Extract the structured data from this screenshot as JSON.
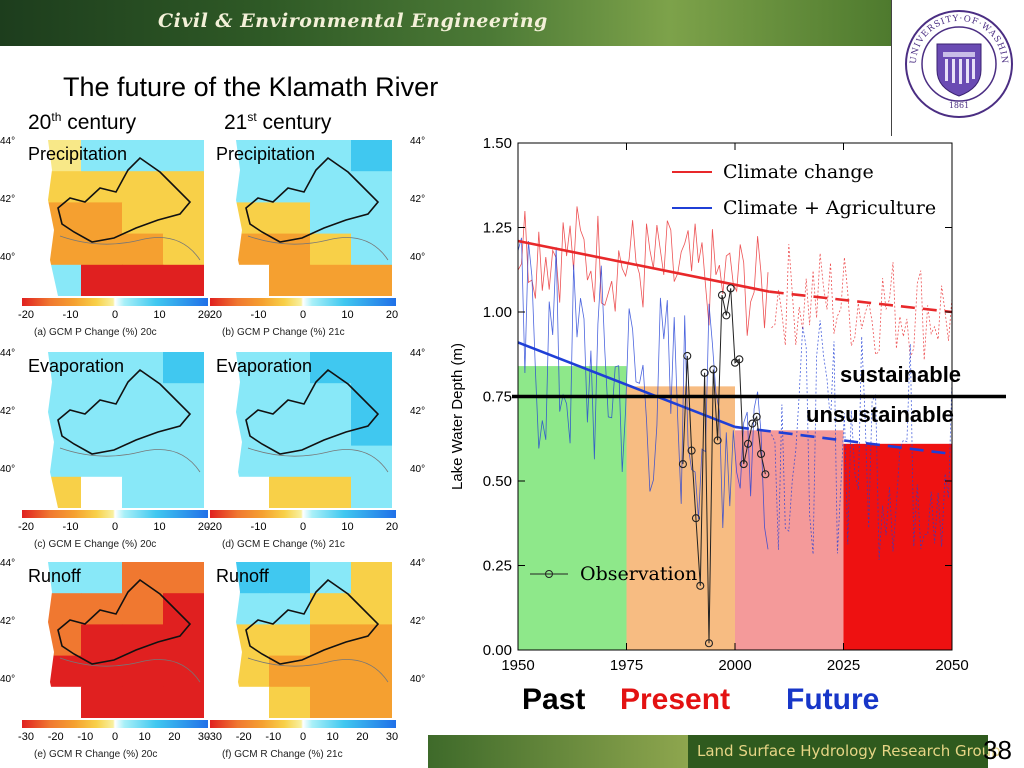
{
  "header": {
    "banner_text": "Civil & Environmental Engineering",
    "seal_text": "UNIVERSITY·OF·WASHINGTON",
    "seal_year": "1861"
  },
  "slide": {
    "title": "The future of the Klamath River",
    "col_left": {
      "num": "20",
      "sup": "th",
      "rest": " century"
    },
    "col_right": {
      "num": "21",
      "sup": "st",
      "rest": " century"
    }
  },
  "maps": {
    "rows": [
      {
        "label": "Precipitation",
        "caption_left": "(a) GCM P Change (%) 20c",
        "caption_right": "(b) GCM P Change (%) 21c",
        "ticks": [
          "-20",
          "-10",
          "0",
          "10",
          "20"
        ]
      },
      {
        "label": "Evaporation",
        "caption_left": "(c) GCM E Change (%) 20c",
        "caption_right": "(d) GCM E Change (%) 21c",
        "ticks": [
          "-20",
          "-10",
          "0",
          "10",
          "20"
        ]
      },
      {
        "label": "Runoff",
        "caption_left": "(e) GCM R Change (%) 20c",
        "caption_right": "(f) GCM R Change (%) 21c",
        "ticks": [
          "-30",
          "-20",
          "-10",
          "0",
          "10",
          "20",
          "30"
        ]
      }
    ],
    "lat_labels": [
      "44°",
      "42°",
      "40°"
    ]
  },
  "chart_data": {
    "type": "line",
    "ylabel": "Lake Water Depth (m)",
    "xlim": [
      1950,
      2050
    ],
    "ylim": [
      0.0,
      1.5
    ],
    "xticks": [
      "1950",
      "1975",
      "2000",
      "2025",
      "2050"
    ],
    "yticks": [
      "0.00",
      "0.25",
      "0.50",
      "0.75",
      "1.00",
      "1.25",
      "1.50"
    ],
    "legend": [
      "Climate change",
      "Climate + Agriculture",
      "Observation"
    ],
    "colors": {
      "climate": "#e8282a",
      "agri": "#1f3fd6",
      "obs": "#222222",
      "threshold": "#000000"
    },
    "threshold": 0.75,
    "zones": [
      {
        "from": 1950,
        "to": 1975,
        "height": 0.84,
        "color": "#8ee88a"
      },
      {
        "from": 1975,
        "to": 2000,
        "height": 0.78,
        "color": "#f7bc82"
      },
      {
        "from": 2000,
        "to": 2025,
        "height": 0.65,
        "color": "#f49a9a"
      },
      {
        "from": 2025,
        "to": 2050,
        "height": 0.61,
        "color": "#ee1111"
      }
    ],
    "climate_trend_solid": [
      [
        1950,
        1.21
      ],
      [
        2008,
        1.06
      ]
    ],
    "climate_trend_dashed": [
      [
        2008,
        1.06
      ],
      [
        2050,
        1.0
      ]
    ],
    "agri_trend_solid": [
      [
        1950,
        0.91
      ],
      [
        2000,
        0.66
      ]
    ],
    "agri_trend_dashed": [
      [
        2000,
        0.66
      ],
      [
        2050,
        0.58
      ]
    ],
    "observation": [
      {
        "x": 1988,
        "y": 0.55
      },
      {
        "x": 1989,
        "y": 0.87
      },
      {
        "x": 1990,
        "y": 0.59
      },
      {
        "x": 1991,
        "y": 0.39
      },
      {
        "x": 1992,
        "y": 0.19
      },
      {
        "x": 1993,
        "y": 0.82
      },
      {
        "x": 1994,
        "y": 0.02
      },
      {
        "x": 1995,
        "y": 0.83
      },
      {
        "x": 1996,
        "y": 0.62
      },
      {
        "x": 1997,
        "y": 1.05
      },
      {
        "x": 1998,
        "y": 0.99
      },
      {
        "x": 1999,
        "y": 1.07
      },
      {
        "x": 2000,
        "y": 0.85
      },
      {
        "x": 2001,
        "y": 0.86
      },
      {
        "x": 2002,
        "y": 0.55
      },
      {
        "x": 2003,
        "y": 0.61
      },
      {
        "x": 2004,
        "y": 0.67
      },
      {
        "x": 2005,
        "y": 0.69
      },
      {
        "x": 2006,
        "y": 0.58
      },
      {
        "x": 2007,
        "y": 0.52
      }
    ]
  },
  "labels": {
    "sustainable": "sustainable",
    "unsustainable": "unsustainable",
    "past": "Past",
    "present": "Present",
    "future": "Future"
  },
  "footer": {
    "text": "Land Surface Hydrology Research Group",
    "page": "38"
  }
}
